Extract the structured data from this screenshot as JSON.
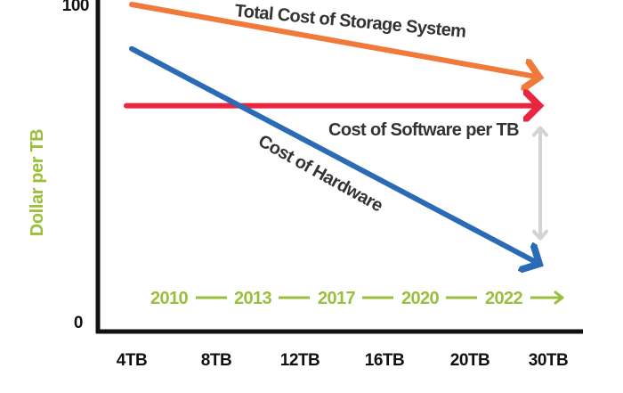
{
  "chart_data": {
    "type": "line",
    "ylabel": "Dollar per TB",
    "ylim": [
      0,
      100
    ],
    "y_ticks": [
      "0",
      "100"
    ],
    "categories": [
      "4TB",
      "8TB",
      "12TB",
      "16TB",
      "20TB",
      "30TB"
    ],
    "series": [
      {
        "name": "Total Cost of Storage System",
        "color": "#f07a3a",
        "start": 100,
        "end": 77
      },
      {
        "name": "Cost of Software per TB",
        "color": "#e8263f",
        "start": 68,
        "end": 68
      },
      {
        "name": "Cost of Hardware",
        "color": "#2b6bb5",
        "start": 86,
        "end": 18
      }
    ],
    "gap_indicator": {
      "color": "#d3d3d3",
      "from": 61,
      "to": 26
    },
    "timeline": {
      "color": "#9abf3c",
      "years": [
        "2010",
        "2013",
        "2017",
        "2020",
        "2022"
      ]
    },
    "axis_color": "#111111"
  }
}
